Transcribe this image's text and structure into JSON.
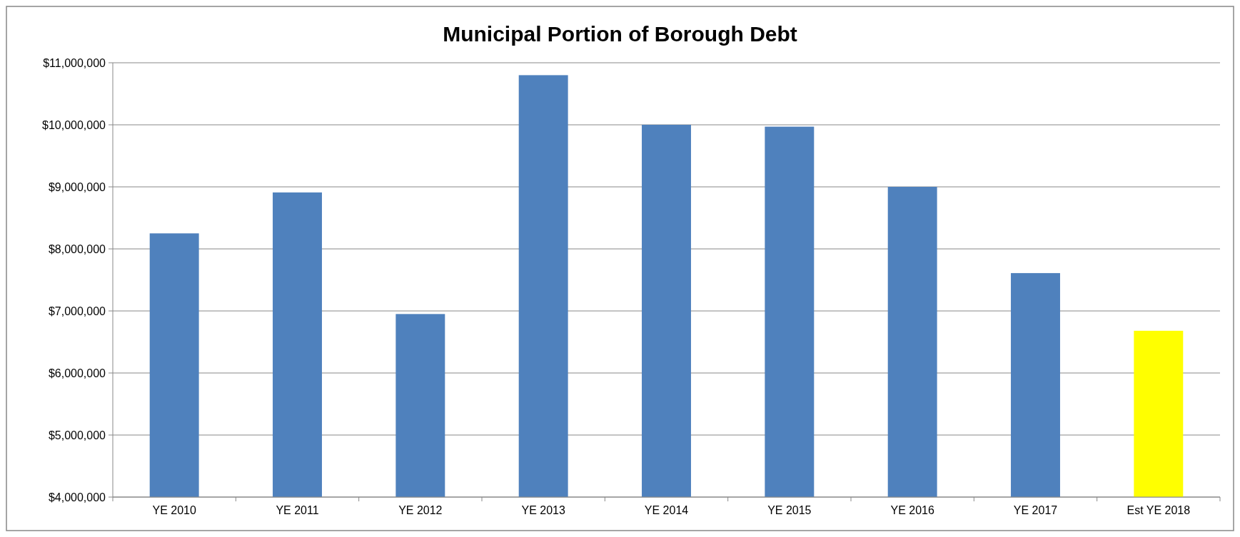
{
  "chart_data": {
    "type": "bar",
    "title": "Municipal Portion of Borough Debt",
    "categories": [
      "YE 2010",
      "YE 2011",
      "YE 2012",
      "YE 2013",
      "YE 2014",
      "YE 2015",
      "YE 2016",
      "YE 2017",
      "Est YE 2018"
    ],
    "values": [
      8250000,
      8910000,
      6950000,
      10800000,
      10000000,
      9970000,
      9000000,
      7610000,
      6680000
    ],
    "colors": [
      "#4f81bd",
      "#4f81bd",
      "#4f81bd",
      "#4f81bd",
      "#4f81bd",
      "#4f81bd",
      "#4f81bd",
      "#4f81bd",
      "#ffff00"
    ],
    "ylim": [
      4000000,
      11000000
    ],
    "yticks": [
      {
        "value": 4000000,
        "label": "$4,000,000"
      },
      {
        "value": 5000000,
        "label": "$5,000,000"
      },
      {
        "value": 6000000,
        "label": "$6,000,000"
      },
      {
        "value": 7000000,
        "label": "$7,000,000"
      },
      {
        "value": 8000000,
        "label": "$8,000,000"
      },
      {
        "value": 9000000,
        "label": "$9,000,000"
      },
      {
        "value": 10000000,
        "label": "$10,000,000"
      },
      {
        "value": 11000000,
        "label": "$11,000,000"
      }
    ],
    "grid": "y"
  }
}
